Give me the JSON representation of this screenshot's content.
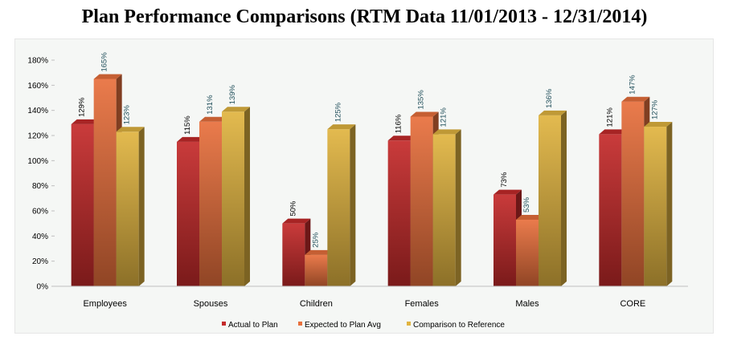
{
  "chart_data": {
    "type": "bar",
    "title": "Plan Performance Comparisons (RTM Data 11/01/2013 - 12/31/2014)",
    "categories": [
      "Employees",
      "Spouses",
      "Children",
      "Females",
      "Males",
      "CORE"
    ],
    "series": [
      {
        "name": "Actual to Plan",
        "values": [
          129,
          115,
          50,
          116,
          73,
          121
        ],
        "labels": [
          "129%",
          "115%",
          "50%",
          "116%",
          "73%",
          "121%"
        ]
      },
      {
        "name": "Expected to Plan Avg",
        "values": [
          165,
          131,
          25,
          135,
          53,
          147
        ],
        "labels": [
          "165%",
          "131%",
          "25%",
          "135%",
          "53%",
          "147%"
        ]
      },
      {
        "name": "Comparison to Reference",
        "values": [
          123,
          139,
          125,
          121,
          136,
          127
        ],
        "labels": [
          "123%",
          "139%",
          "125%",
          "121%",
          "136%",
          "127%"
        ]
      }
    ],
    "y_ticks": [
      "0%",
      "20%",
      "40%",
      "60%",
      "80%",
      "100%",
      "120%",
      "140%",
      "160%",
      "180%"
    ],
    "ylim": [
      0,
      180
    ],
    "xlabel": "",
    "ylabel": "",
    "legend_position": "bottom",
    "grid": false,
    "colors": {
      "Actual to Plan": "#c42a2a",
      "Expected to Plan Avg": "#e8703c",
      "Comparison to Reference": "#e1b440"
    },
    "label_colors": {
      "Actual to Plan": "#000000",
      "Expected to Plan Avg": "#1f4e5a",
      "Comparison to Reference": "#1f4e5a"
    }
  }
}
